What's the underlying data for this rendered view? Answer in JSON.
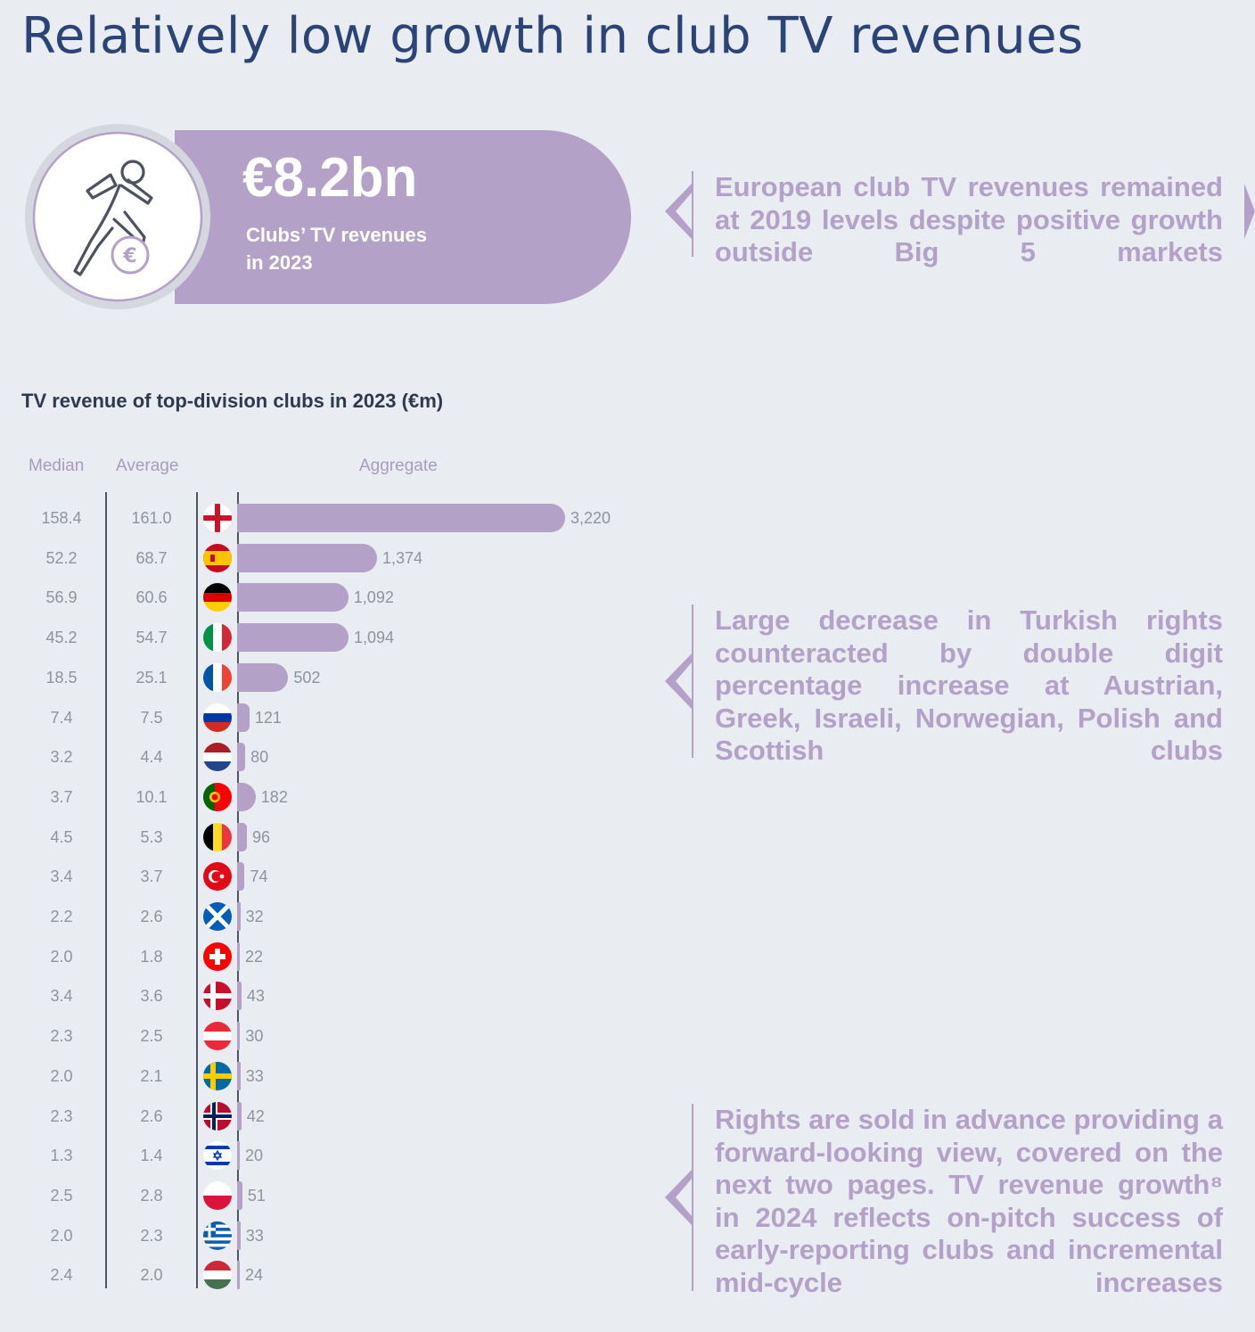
{
  "header": {
    "title": "Relatively low growth in club TV revenues"
  },
  "kpi": {
    "value": "€8.2bn",
    "label_line1": "Clubs’ TV revenues",
    "label_line2": "in 2023",
    "icon": "football-player-euro-icon"
  },
  "callouts": [
    "European club TV revenues remained at 2019 levels despite positive growth outside Big 5 markets",
    "Large decrease in Turkish rights counteracted by double digit percentage increase at Austrian, Greek, Israeli, Norwegian, Polish and Scottish clubs",
    "Rights are sold in advance providing a forward-looking view, covered on the next two pages. TV revenue growth⁸ in 2024 reflects on-pitch success of early-reporting clubs and incremental mid-cycle increases"
  ],
  "colors": {
    "accent": "#b3a1c8",
    "title": "#2b4478",
    "background": "#e9ecf1"
  },
  "chart_data": {
    "type": "bar",
    "title": "TV revenue of top-division clubs in 2023 (€m)",
    "columns": {
      "median": "Median",
      "average": "Average",
      "aggregate": "Aggregate"
    },
    "rows": [
      {
        "flag": "england-flag-icon",
        "median": "158.4",
        "average": "161.0",
        "aggregate": 3220,
        "aggregate_label": "3,220"
      },
      {
        "flag": "spain-flag-icon",
        "median": "52.2",
        "average": "68.7",
        "aggregate": 1374,
        "aggregate_label": "1,374"
      },
      {
        "flag": "germany-flag-icon",
        "median": "56.9",
        "average": "60.6",
        "aggregate": 1092,
        "aggregate_label": "1,092"
      },
      {
        "flag": "italy-flag-icon",
        "median": "45.2",
        "average": "54.7",
        "aggregate": 1094,
        "aggregate_label": "1,094"
      },
      {
        "flag": "france-flag-icon",
        "median": "18.5",
        "average": "25.1",
        "aggregate": 502,
        "aggregate_label": "502"
      },
      {
        "flag": "russia-flag-icon",
        "median": "7.4",
        "average": "7.5",
        "aggregate": 121,
        "aggregate_label": "121"
      },
      {
        "flag": "netherlands-flag-icon",
        "median": "3.2",
        "average": "4.4",
        "aggregate": 80,
        "aggregate_label": "80"
      },
      {
        "flag": "portugal-flag-icon",
        "median": "3.7",
        "average": "10.1",
        "aggregate": 182,
        "aggregate_label": "182"
      },
      {
        "flag": "belgium-flag-icon",
        "median": "4.5",
        "average": "5.3",
        "aggregate": 96,
        "aggregate_label": "96"
      },
      {
        "flag": "turkey-flag-icon",
        "median": "3.4",
        "average": "3.7",
        "aggregate": 74,
        "aggregate_label": "74"
      },
      {
        "flag": "scotland-flag-icon",
        "median": "2.2",
        "average": "2.6",
        "aggregate": 32,
        "aggregate_label": "32"
      },
      {
        "flag": "switzerland-flag-icon",
        "median": "2.0",
        "average": "1.8",
        "aggregate": 22,
        "aggregate_label": "22"
      },
      {
        "flag": "denmark-flag-icon",
        "median": "3.4",
        "average": "3.6",
        "aggregate": 43,
        "aggregate_label": "43"
      },
      {
        "flag": "austria-flag-icon",
        "median": "2.3",
        "average": "2.5",
        "aggregate": 30,
        "aggregate_label": "30"
      },
      {
        "flag": "sweden-flag-icon",
        "median": "2.0",
        "average": "2.1",
        "aggregate": 33,
        "aggregate_label": "33"
      },
      {
        "flag": "norway-flag-icon",
        "median": "2.3",
        "average": "2.6",
        "aggregate": 42,
        "aggregate_label": "42"
      },
      {
        "flag": "israel-flag-icon",
        "median": "1.3",
        "average": "1.4",
        "aggregate": 20,
        "aggregate_label": "20"
      },
      {
        "flag": "poland-flag-icon",
        "median": "2.5",
        "average": "2.8",
        "aggregate": 51,
        "aggregate_label": "51"
      },
      {
        "flag": "greece-flag-icon",
        "median": "2.0",
        "average": "2.3",
        "aggregate": 33,
        "aggregate_label": "33"
      },
      {
        "flag": "hungary-flag-icon",
        "median": "2.4",
        "average": "2.0",
        "aggregate": 24,
        "aggregate_label": "24"
      }
    ]
  }
}
